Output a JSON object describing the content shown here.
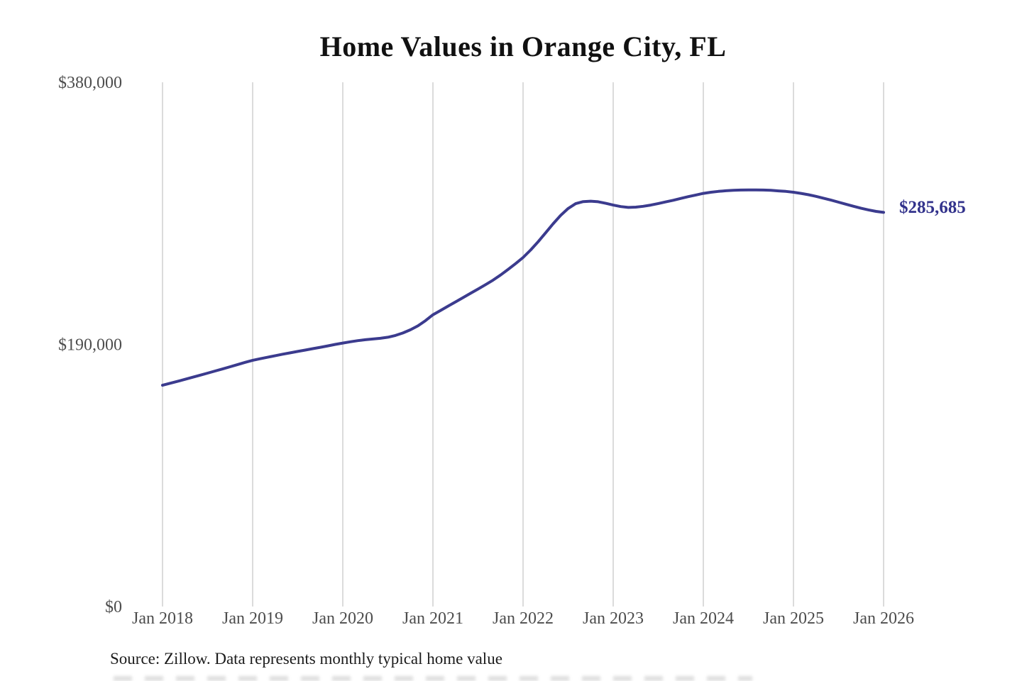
{
  "title": "Home Values in Orange City, FL",
  "source_note": "Source: Zillow. Data represents monthly typical home value",
  "chart_data": {
    "type": "line",
    "title": "Home Values in Orange City, FL",
    "frequency": "monthly",
    "x_range": [
      "Jan 2018",
      "Jan 2026"
    ],
    "x_tick_labels": [
      "Jan 2018",
      "Jan 2019",
      "Jan 2020",
      "Jan 2021",
      "Jan 2022",
      "Jan 2023",
      "Jan 2024",
      "Jan 2025",
      "Jan 2026"
    ],
    "y_ticks": [
      {
        "label": "$380,000",
        "value": 380000
      },
      {
        "label": "$190,000",
        "value": 190000
      },
      {
        "label": "$0",
        "value": 0
      }
    ],
    "ylim": [
      0,
      380000
    ],
    "grid": "vertical-only",
    "legend": "none",
    "line_color": "#3b3b8e",
    "grid_color": "#cccccc",
    "tick_label_color": "#4d4d4d",
    "annotation": {
      "text": "$285,685",
      "value": 285685,
      "color": "#33338c"
    },
    "values": [
      160400,
      161800,
      163200,
      164700,
      166200,
      167700,
      169200,
      170700,
      172200,
      173800,
      175400,
      177000,
      178500,
      179600,
      180700,
      181800,
      182900,
      183900,
      184900,
      185900,
      186900,
      187900,
      188900,
      190000,
      191000,
      191900,
      192700,
      193400,
      193900,
      194400,
      195200,
      196500,
      198300,
      200600,
      203400,
      207200,
      211500,
      214600,
      217700,
      220800,
      223900,
      227000,
      230100,
      233300,
      236600,
      240300,
      244300,
      248500,
      253000,
      258400,
      264400,
      270900,
      277400,
      283500,
      288500,
      292000,
      293500,
      293800,
      293400,
      292300,
      291000,
      289900,
      289300,
      289500,
      290100,
      291000,
      292100,
      293300,
      294500,
      295800,
      297100,
      298300,
      299500,
      300300,
      300900,
      301400,
      301700,
      301900,
      302000,
      302000,
      301900,
      301700,
      301300,
      300900,
      300300,
      299500,
      298500,
      297300,
      296000,
      294600,
      293100,
      291600,
      290100,
      288700,
      287500,
      286400,
      285685
    ]
  }
}
